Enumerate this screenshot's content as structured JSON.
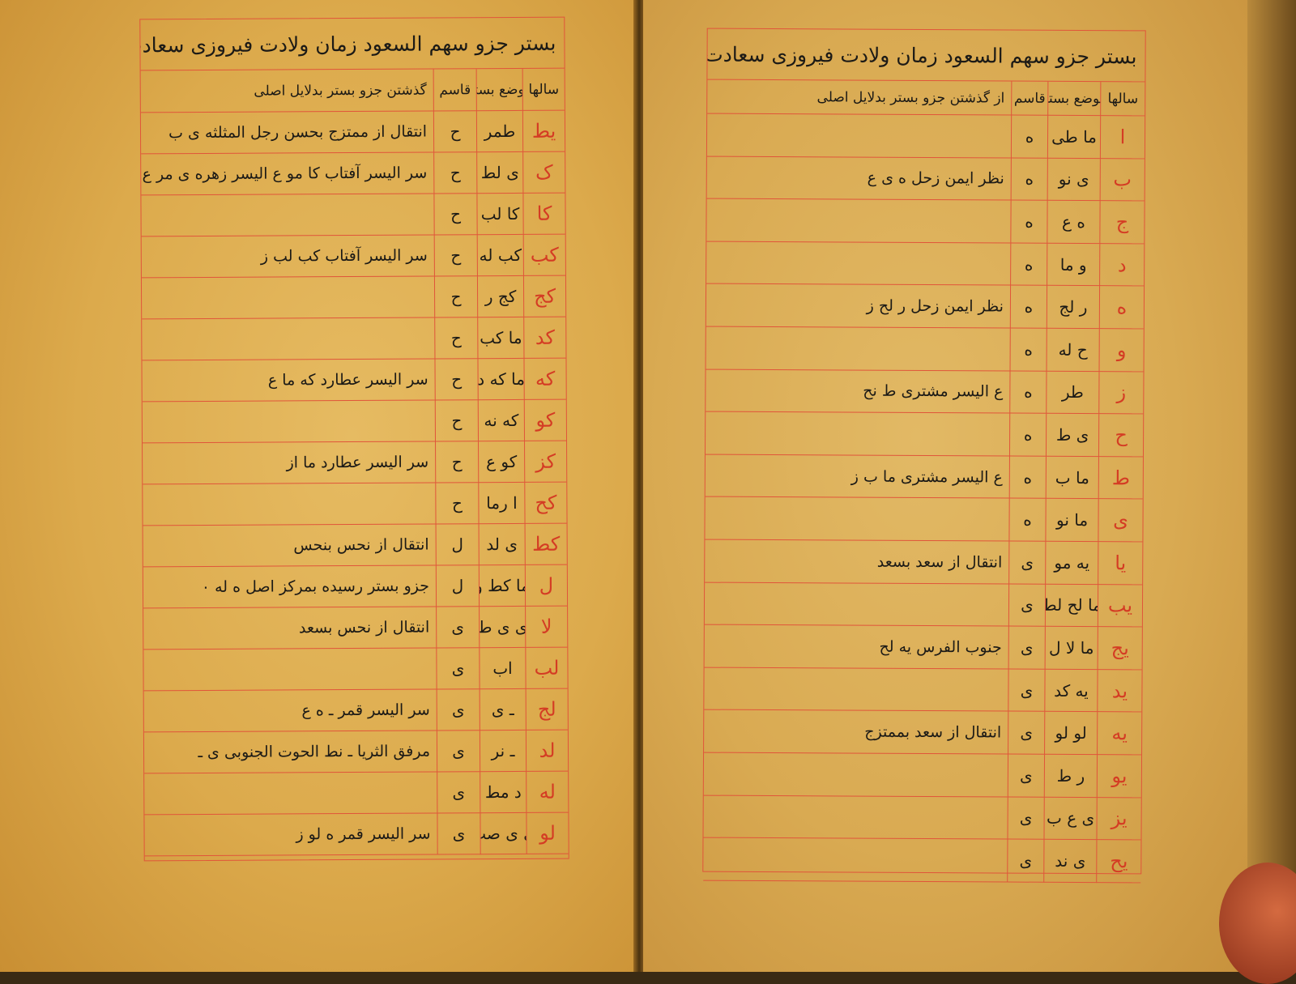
{
  "colors": {
    "paper": "#dcaa4c",
    "rule_lines": "#e0553a",
    "year_ink": "#d43c24",
    "text_ink": "#1c1a16"
  },
  "title": "بستر جزو سهم السعود زمان ولادت فیروزی سعادت",
  "columns": {
    "years": "سالها",
    "position": "موضع بستر",
    "divider": "قاسم",
    "notes": "از گذشتن جزو بستر بدلایل اصلی"
  },
  "left_page": {
    "title": "بستر جزو سهم السعود زمان ولادت فیروزی سعادت",
    "columns": {
      "years": "سالها",
      "position": "موضع بستر",
      "divider": "قاسم",
      "notes": "گذشتن جزو بستر بدلایل اصلی"
    },
    "rows": [
      {
        "year": "یط",
        "position": "طمر",
        "divider": "ح",
        "note": "انتقال از ممتزج بحسن رجل المثلثه ی ب"
      },
      {
        "year": "ک",
        "position": "ی لط",
        "divider": "ح",
        "note": "سر الیسر آفتاب کا مو ع الیسر زهره ی مر ع / ع الیسر زهره کا از"
      },
      {
        "year": "کا",
        "position": "کا لب",
        "divider": "ح",
        "note": ""
      },
      {
        "year": "کب",
        "position": "کب له",
        "divider": "ح",
        "note": "سر الیسر آفتاب کب لب ز"
      },
      {
        "year": "کج",
        "position": "کج ر",
        "divider": "ح",
        "note": ""
      },
      {
        "year": "کد",
        "position": "ما کب",
        "divider": "ح",
        "note": ""
      },
      {
        "year": "که",
        "position": "ما که د",
        "divider": "ح",
        "note": "سر الیسر عطارد که ما ع"
      },
      {
        "year": "کو",
        "position": "که نه",
        "divider": "ح",
        "note": ""
      },
      {
        "year": "کز",
        "position": "کو ع",
        "divider": "ح",
        "note": "سر الیسر عطارد ما از"
      },
      {
        "year": "کح",
        "position": "ا رما",
        "divider": "ح",
        "note": ""
      },
      {
        "year": "کط",
        "position": "ی لد",
        "divider": "ل",
        "note": "انتقال از نحس بنحس"
      },
      {
        "year": "ل",
        "position": "ما کط و",
        "divider": "ل",
        "note": "جزو بستر رسیده بمرکز اصل ه له ۰"
      },
      {
        "year": "لا",
        "position": "ی ی ط",
        "divider": "ی",
        "note": "انتقال از نحس بسعد"
      },
      {
        "year": "لب",
        "position": "اب",
        "divider": "ی",
        "note": ""
      },
      {
        "year": "لج",
        "position": "ـ ی",
        "divider": "ی",
        "note": "سر الیسر قمر ـ ه ع"
      },
      {
        "year": "لد",
        "position": "ـ نر",
        "divider": "ی",
        "note": "مرفق الثریا ـ نط الحوت الجنوبی ی ـ"
      },
      {
        "year": "له",
        "position": "د مط",
        "divider": "ی",
        "note": ""
      },
      {
        "year": "لو",
        "position": "ی ی صب",
        "divider": "ی",
        "note": "سر الیسر قمر ه لو ز"
      }
    ]
  },
  "right_page": {
    "title": "بستر جزو سهم السعود زمان ولادت فیروزی سعادت",
    "columns": {
      "years": "سالها",
      "position": "موضع بستر",
      "divider": "قاسم",
      "notes": "از گذشتن جزو بستر بدلایل اصلی"
    },
    "rows": [
      {
        "year": "ا",
        "position": "ما طی",
        "divider": "ه",
        "note": ""
      },
      {
        "year": "ب",
        "position": "ی نو",
        "divider": "ه",
        "note": "نظر ایمن زحل ه ی ع"
      },
      {
        "year": "ج",
        "position": "ه ع",
        "divider": "ه",
        "note": ""
      },
      {
        "year": "د",
        "position": "و ما",
        "divider": "ه",
        "note": ""
      },
      {
        "year": "ه",
        "position": "ر لج",
        "divider": "ه",
        "note": "نظر ایمن زحل ر لح ز"
      },
      {
        "year": "و",
        "position": "ح له",
        "divider": "ه",
        "note": ""
      },
      {
        "year": "ز",
        "position": "طر",
        "divider": "ه",
        "note": "ع الیسر مشتری ط نح"
      },
      {
        "year": "ح",
        "position": "ی ط",
        "divider": "ه",
        "note": ""
      },
      {
        "year": "ط",
        "position": "ما ب",
        "divider": "ه",
        "note": "ع الیسر مشتری ما ب ز"
      },
      {
        "year": "ی",
        "position": "ما نو",
        "divider": "ه",
        "note": ""
      },
      {
        "year": "یا",
        "position": "یه مو",
        "divider": "ی",
        "note": "انتقال از سعد بسعد"
      },
      {
        "year": "یب",
        "position": "ما لح لط",
        "divider": "ی",
        "note": ""
      },
      {
        "year": "یج",
        "position": "ما لا ل",
        "divider": "ی",
        "note": "جنوب الفرس یه لح"
      },
      {
        "year": "ید",
        "position": "یه کد",
        "divider": "ی",
        "note": ""
      },
      {
        "year": "یه",
        "position": "لو لو",
        "divider": "ی",
        "note": "انتقال از سعد بممتزج"
      },
      {
        "year": "یو",
        "position": "ر ط",
        "divider": "ی",
        "note": ""
      },
      {
        "year": "یز",
        "position": "ی ع ب",
        "divider": "ی",
        "note": ""
      },
      {
        "year": "یح",
        "position": "ی ند",
        "divider": "ی",
        "note": ""
      }
    ]
  }
}
